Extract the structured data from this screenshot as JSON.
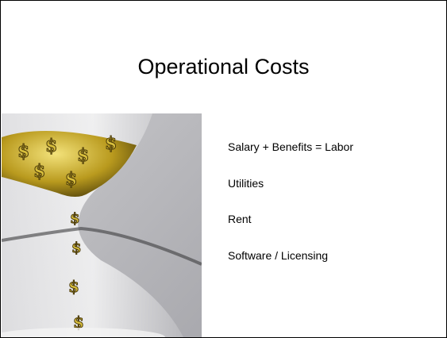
{
  "slide": {
    "title": "Operational Costs",
    "items": [
      "Salary + Benefits = Labor",
      "Utilities",
      "Rent",
      "Software / Licensing"
    ]
  }
}
